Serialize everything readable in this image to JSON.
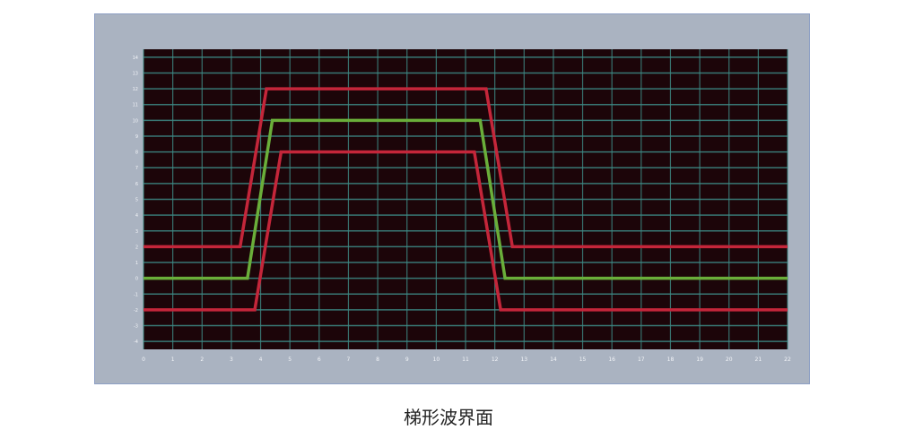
{
  "chart_data": {
    "type": "line",
    "title": "",
    "xlabel": "",
    "ylabel": "",
    "xlim": [
      0,
      22
    ],
    "ylim": [
      -4.5,
      14.5
    ],
    "x_ticks": [
      0,
      1,
      2,
      3,
      4,
      5,
      6,
      7,
      8,
      9,
      10,
      11,
      12,
      13,
      14,
      15,
      16,
      17,
      18,
      19,
      20,
      21,
      22
    ],
    "y_ticks": [
      -4,
      -3,
      -2,
      -1,
      0,
      1,
      2,
      3,
      4,
      5,
      6,
      7,
      8,
      9,
      10,
      11,
      12,
      13,
      14
    ],
    "grid": true,
    "legend": "none",
    "background_color": "#1c0509",
    "grid_color": "#3e8c87",
    "series": [
      {
        "color": "#c4263a",
        "x": [
          0,
          3.3,
          4.2,
          11.7,
          12.6,
          22
        ],
        "y": [
          2,
          2,
          12,
          12,
          2,
          2
        ]
      },
      {
        "color": "#6aae3a",
        "x": [
          0,
          3.55,
          4.4,
          11.5,
          12.35,
          22
        ],
        "y": [
          0,
          0,
          10,
          10,
          0,
          0
        ]
      },
      {
        "color": "#c4263a",
        "x": [
          0,
          3.8,
          4.7,
          11.3,
          12.2,
          22
        ],
        "y": [
          -2,
          -2,
          8,
          8,
          -2,
          -2
        ]
      }
    ]
  },
  "caption": "梯形波界面"
}
